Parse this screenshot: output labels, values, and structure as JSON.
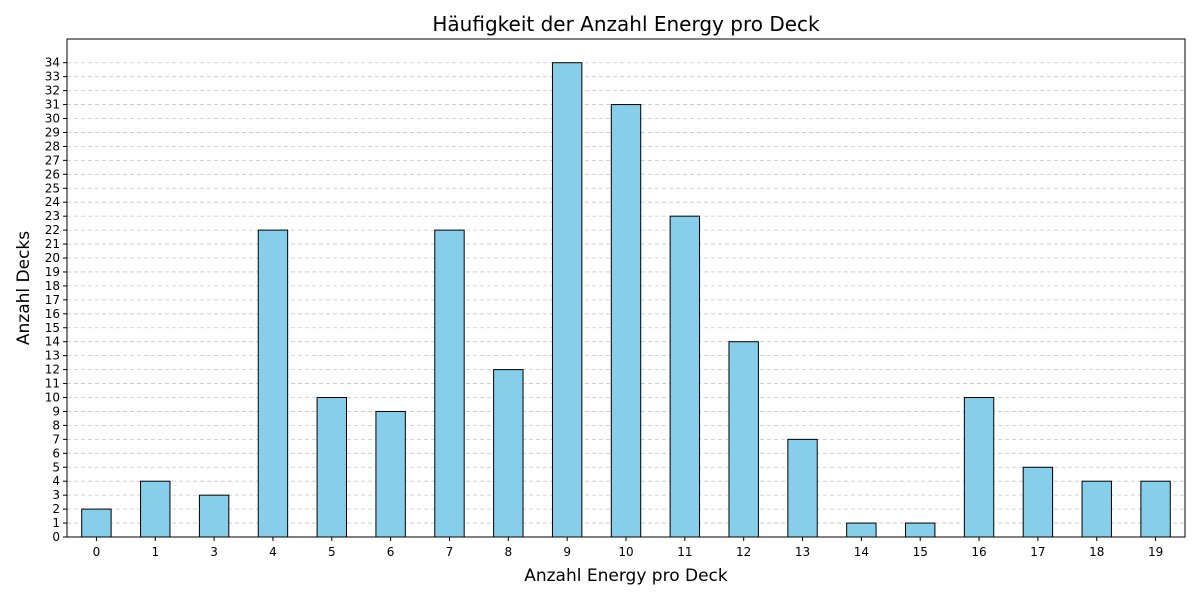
{
  "chart_data": {
    "type": "bar",
    "title": "Häufigkeit der Anzahl Energy pro Deck",
    "xlabel": "Anzahl Energy pro Deck",
    "ylabel": "Anzahl Decks",
    "categories": [
      "0",
      "1",
      "3",
      "4",
      "5",
      "6",
      "7",
      "8",
      "9",
      "10",
      "11",
      "12",
      "13",
      "14",
      "15",
      "16",
      "17",
      "18",
      "19"
    ],
    "values": [
      2,
      4,
      3,
      22,
      10,
      9,
      22,
      12,
      34,
      31,
      23,
      14,
      7,
      1,
      1,
      10,
      5,
      4,
      4
    ],
    "ylim": [
      0,
      35.7
    ],
    "yticks": [
      0,
      1,
      2,
      3,
      4,
      5,
      6,
      7,
      8,
      9,
      10,
      11,
      12,
      13,
      14,
      15,
      16,
      17,
      18,
      19,
      20,
      21,
      22,
      23,
      24,
      25,
      26,
      27,
      28,
      29,
      30,
      31,
      32,
      33,
      34
    ],
    "grid": "y-dashed",
    "bar_color": "#87ceeb",
    "edge_color": "#000000"
  }
}
